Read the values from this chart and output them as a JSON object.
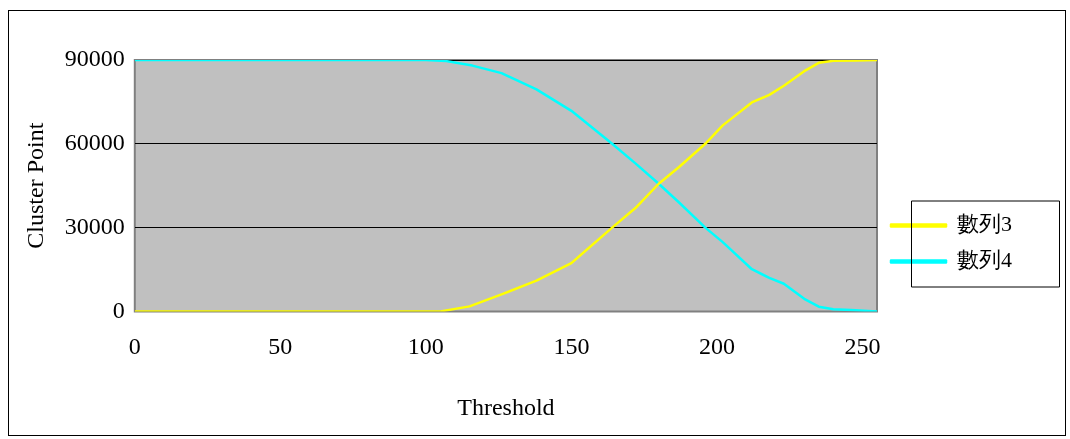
{
  "chart_data": {
    "type": "line",
    "xlabel": "Threshold",
    "ylabel": "Cluster Point",
    "xlim": [
      0,
      255
    ],
    "xticks": [
      0,
      50,
      100,
      150,
      200,
      250
    ],
    "ylim": [
      0,
      90000
    ],
    "yticks": [
      0,
      30000,
      60000,
      90000
    ],
    "grid": "y",
    "legend": "right",
    "marker": "none",
    "line_style": "solid",
    "series": [
      {
        "name": "數列3",
        "color": "#ffff00",
        "x": [
          0,
          50,
          100,
          105,
          115,
          126,
          138,
          150,
          164,
          172,
          180,
          187,
          196,
          202,
          212,
          218,
          223,
          230,
          235,
          240,
          248,
          255
        ],
        "values": [
          0,
          0,
          0,
          0,
          1800,
          6100,
          11000,
          17300,
          30000,
          37000,
          45700,
          51700,
          60000,
          66600,
          74800,
          77500,
          80800,
          86000,
          89000,
          89700,
          89800,
          90000
        ]
      },
      {
        "name": "數列4",
        "color": "#00ffff",
        "x": [
          0,
          50,
          100,
          107,
          116,
          126,
          138,
          150,
          164,
          172,
          180,
          187,
          196,
          202,
          212,
          218,
          223,
          230,
          235,
          240,
          246,
          255
        ],
        "values": [
          90000,
          90000,
          90000,
          89600,
          88000,
          85300,
          79500,
          71800,
          60000,
          53000,
          45700,
          39000,
          30000,
          24800,
          15100,
          12000,
          9900,
          4500,
          1700,
          800,
          500,
          0
        ]
      }
    ]
  }
}
